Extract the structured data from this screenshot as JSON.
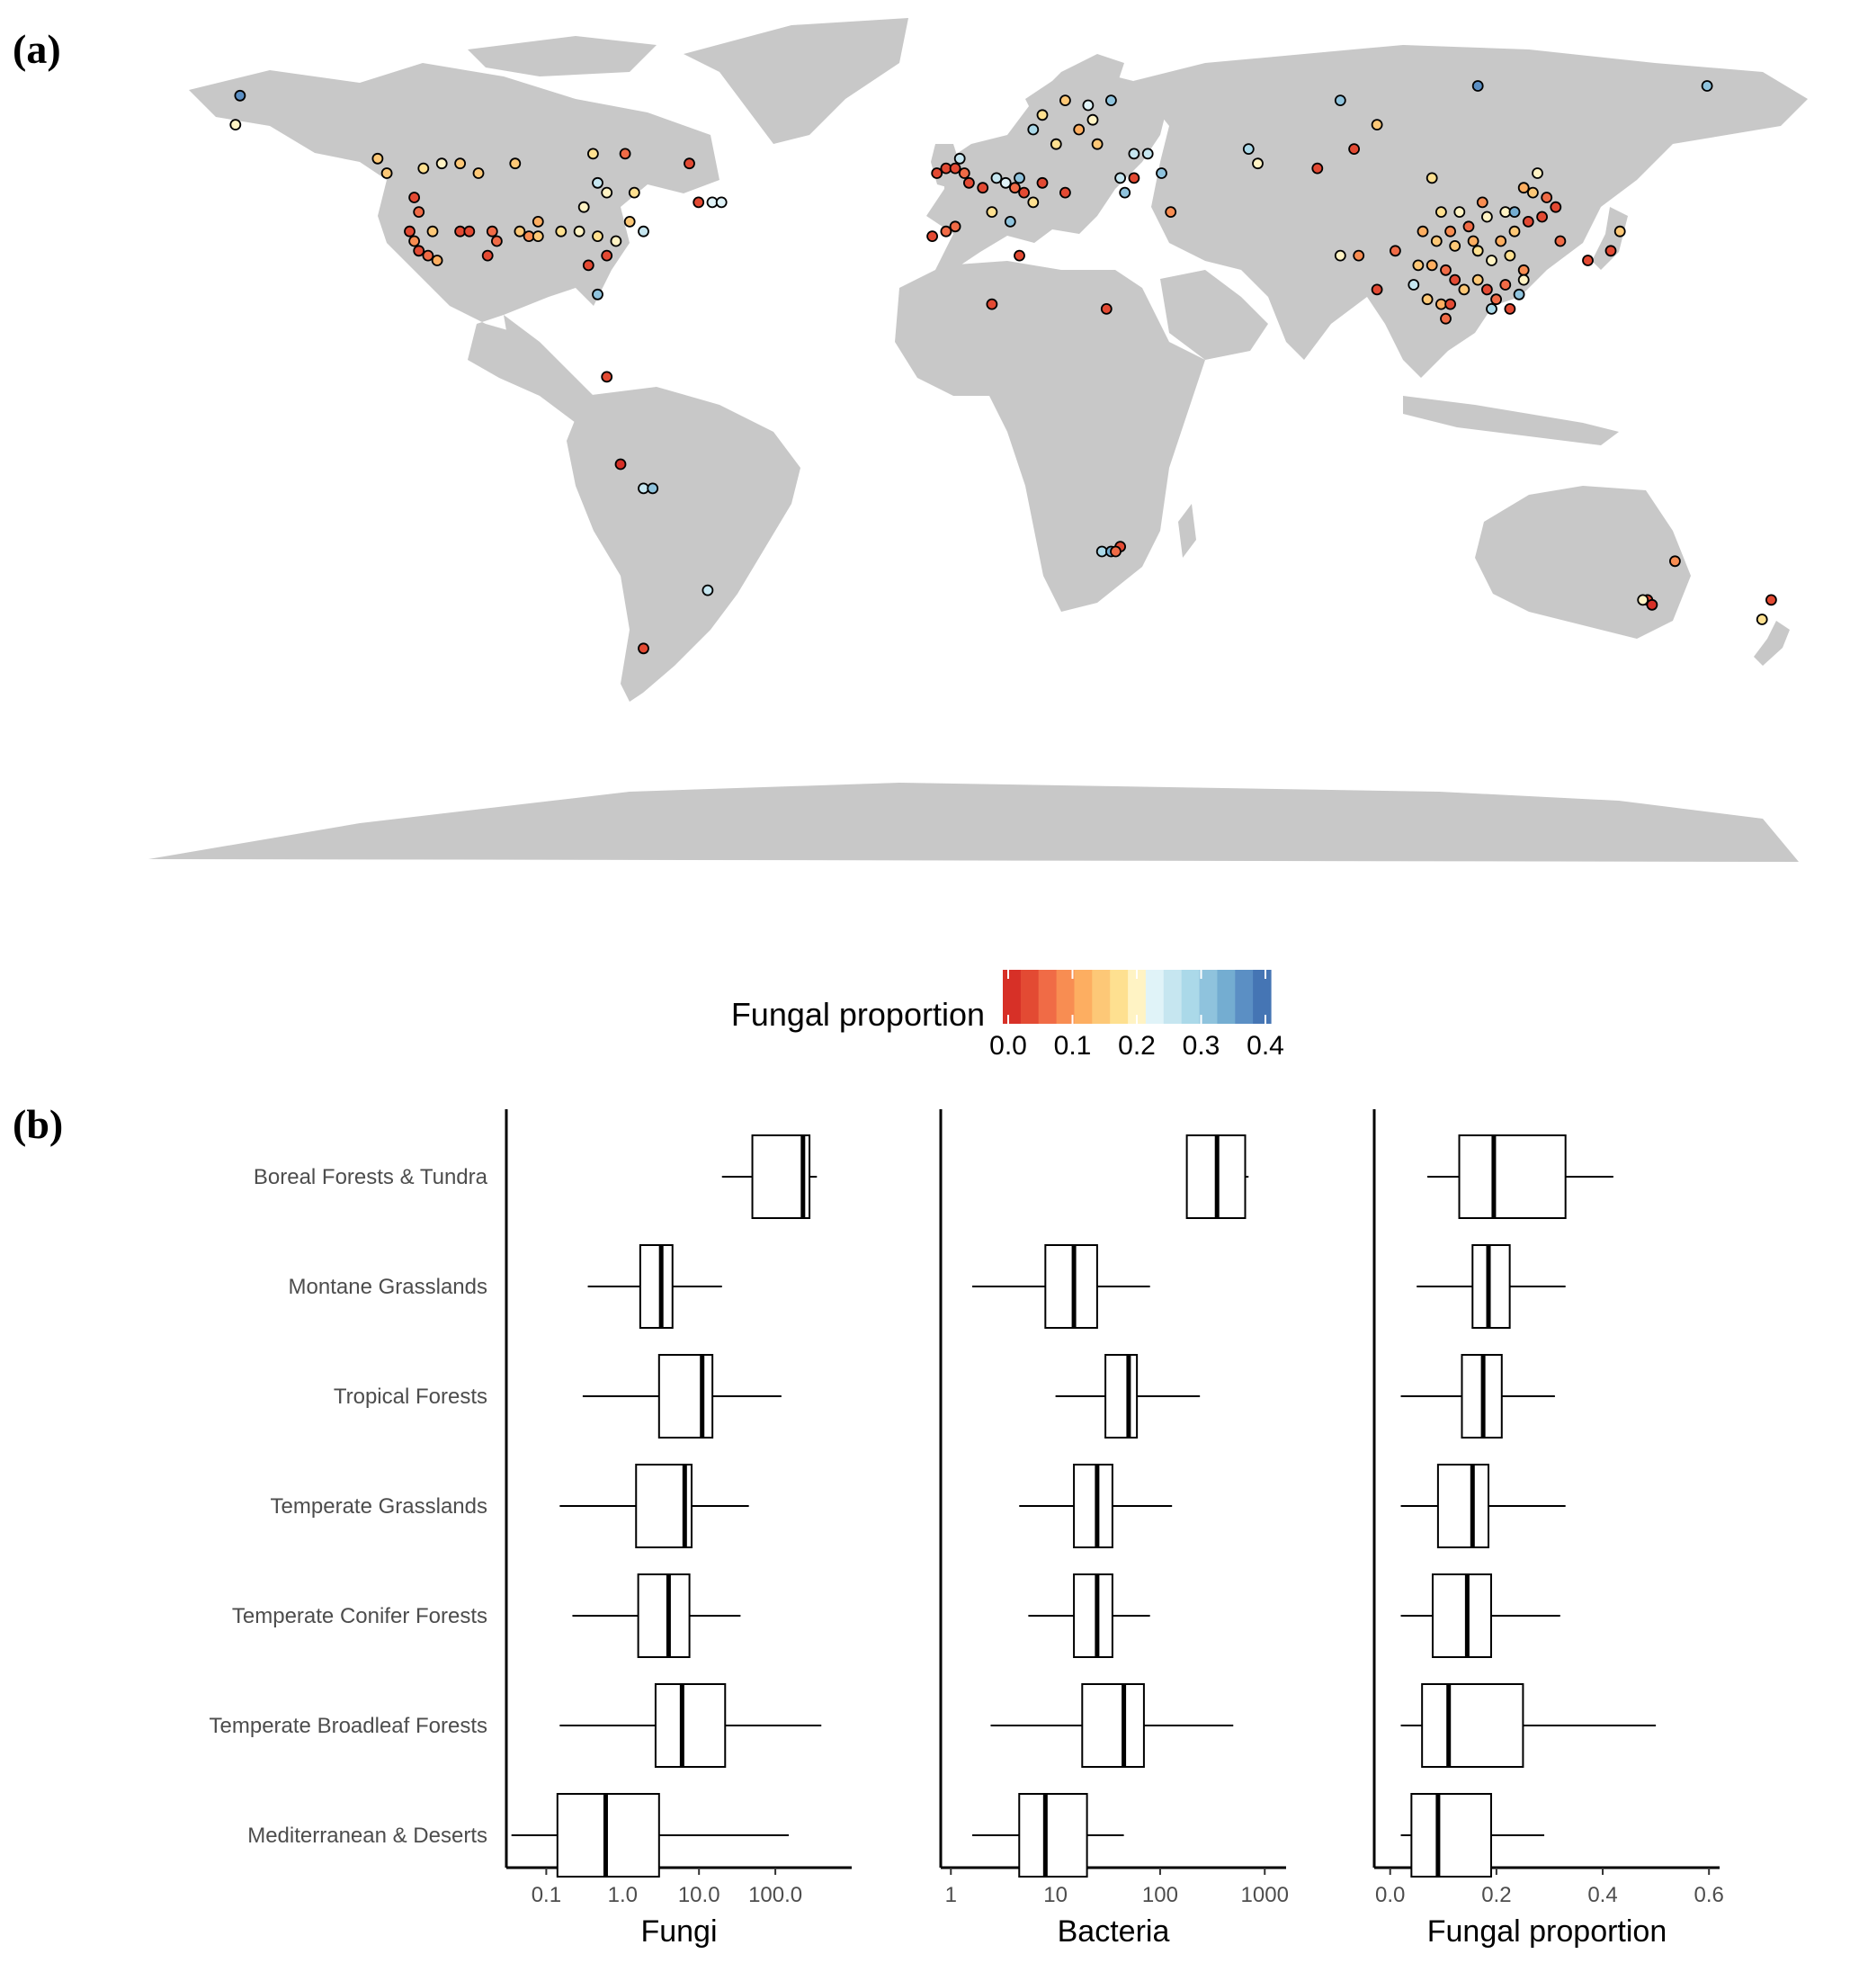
{
  "panel_a_label": "(a)",
  "panel_b_label": "(b)",
  "colors": {
    "land": "#c8c8c8",
    "palette": [
      "#d73027",
      "#e34a33",
      "#f06b46",
      "#f88d52",
      "#fdae61",
      "#fdc877",
      "#fee090",
      "#fff3c4",
      "#e0f3f8",
      "#c6e6f0",
      "#abd9e9",
      "#8fc3dd",
      "#74add1",
      "#5b8fc4",
      "#4575b4"
    ]
  },
  "chart_data": [
    {
      "type": "scatter",
      "title": "",
      "legend": {
        "title": "Fungal proportion",
        "ticks": [
          "0.0",
          "0.1",
          "0.2",
          "0.3",
          "0.4"
        ],
        "range": [
          0.0,
          0.4
        ],
        "placement": "bottom-center"
      },
      "points_lonlat_value": [
        [
          -160,
          68,
          0.35
        ],
        [
          -161,
          62,
          0.19
        ],
        [
          -130,
          55,
          0.15
        ],
        [
          -128,
          52,
          0.16
        ],
        [
          -120,
          53,
          0.18
        ],
        [
          -112,
          54,
          0.14
        ],
        [
          -108,
          52,
          0.15
        ],
        [
          -116,
          54,
          0.2
        ],
        [
          -100,
          54,
          0.16
        ],
        [
          -83,
          56,
          0.18
        ],
        [
          -76,
          56,
          0.06
        ],
        [
          -62,
          54,
          0.05
        ],
        [
          -82,
          50,
          0.24
        ],
        [
          -80,
          48,
          0.2
        ],
        [
          -74,
          48,
          0.17
        ],
        [
          -60,
          46,
          0.03
        ],
        [
          -57,
          46,
          0.22
        ],
        [
          -55,
          46,
          0.22
        ],
        [
          -122,
          47,
          0.05
        ],
        [
          -121,
          44,
          0.08
        ],
        [
          -123,
          40,
          0.05
        ],
        [
          -122,
          38,
          0.1
        ],
        [
          -121,
          36,
          0.04
        ],
        [
          -119,
          35,
          0.08
        ],
        [
          -117,
          34,
          0.13
        ],
        [
          -118,
          40,
          0.15
        ],
        [
          -112,
          40,
          0.05
        ],
        [
          -110,
          40,
          0.04
        ],
        [
          -105,
          40,
          0.08
        ],
        [
          -104,
          38,
          0.07
        ],
        [
          -106,
          35,
          0.05
        ],
        [
          -99,
          40,
          0.15
        ],
        [
          -97,
          39,
          0.1
        ],
        [
          -95,
          42,
          0.12
        ],
        [
          -95,
          39,
          0.16
        ],
        [
          -90,
          40,
          0.18
        ],
        [
          -86,
          40,
          0.19
        ],
        [
          -82,
          39,
          0.18
        ],
        [
          -78,
          38,
          0.2
        ],
        [
          -85,
          45,
          0.2
        ],
        [
          -75,
          42,
          0.16
        ],
        [
          -72,
          40,
          0.24
        ],
        [
          -80,
          35,
          0.05
        ],
        [
          -84,
          33,
          0.04
        ],
        [
          -82,
          27,
          0.32
        ],
        [
          -80,
          10,
          0.04
        ],
        [
          -77,
          -8,
          0.02
        ],
        [
          -72,
          -13,
          0.26
        ],
        [
          -70,
          -13,
          0.3
        ],
        [
          -58,
          -34,
          0.26
        ],
        [
          -72,
          -46,
          0.04
        ],
        [
          -8,
          52,
          0.04
        ],
        [
          -6,
          53,
          0.05
        ],
        [
          -4,
          53,
          0.05
        ],
        [
          -2,
          52,
          0.06
        ],
        [
          -3,
          55,
          0.24
        ],
        [
          -1,
          50,
          0.03
        ],
        [
          2,
          49,
          0.05
        ],
        [
          5,
          51,
          0.26
        ],
        [
          7,
          50,
          0.22
        ],
        [
          9,
          49,
          0.06
        ],
        [
          11,
          48,
          0.05
        ],
        [
          13,
          46,
          0.17
        ],
        [
          8,
          42,
          0.3
        ],
        [
          4,
          44,
          0.17
        ],
        [
          10,
          51,
          0.3
        ],
        [
          15,
          50,
          0.04
        ],
        [
          20,
          48,
          0.05
        ],
        [
          -4,
          41,
          0.08
        ],
        [
          -6,
          40,
          0.06
        ],
        [
          -9,
          39,
          0.04
        ],
        [
          4,
          25,
          0.04
        ],
        [
          10,
          35,
          0.04
        ],
        [
          15,
          64,
          0.17
        ],
        [
          20,
          67,
          0.15
        ],
        [
          23,
          61,
          0.13
        ],
        [
          26,
          63,
          0.2
        ],
        [
          30,
          67,
          0.3
        ],
        [
          25,
          66,
          0.22
        ],
        [
          13,
          61,
          0.28
        ],
        [
          18,
          58,
          0.18
        ],
        [
          27,
          58,
          0.16
        ],
        [
          35,
          56,
          0.26
        ],
        [
          38,
          56,
          0.24
        ],
        [
          32,
          51,
          0.25
        ],
        [
          35,
          51,
          0.04
        ],
        [
          33,
          48,
          0.3
        ],
        [
          43,
          44,
          0.1
        ],
        [
          41,
          52,
          0.3
        ],
        [
          29,
          24,
          0.04
        ],
        [
          60,
          57,
          0.29
        ],
        [
          62,
          54,
          0.2
        ],
        [
          75,
          53,
          0.04
        ],
        [
          83,
          57,
          0.03
        ],
        [
          88,
          62,
          0.16
        ],
        [
          100,
          51,
          0.17
        ],
        [
          80,
          67,
          0.32
        ],
        [
          110,
          70,
          0.36
        ],
        [
          160,
          70,
          0.3
        ],
        [
          88,
          28,
          0.03
        ],
        [
          80,
          35,
          0.2
        ],
        [
          84,
          35,
          0.1
        ],
        [
          92,
          36,
          0.06
        ],
        [
          97,
          33,
          0.15
        ],
        [
          100,
          33,
          0.12
        ],
        [
          103,
          32,
          0.08
        ],
        [
          105,
          30,
          0.05
        ],
        [
          107,
          28,
          0.15
        ],
        [
          110,
          30,
          0.14
        ],
        [
          112,
          28,
          0.05
        ],
        [
          114,
          26,
          0.08
        ],
        [
          116,
          29,
          0.06
        ],
        [
          117,
          24,
          0.04
        ],
        [
          113,
          24,
          0.28
        ],
        [
          119,
          27,
          0.3
        ],
        [
          120,
          32,
          0.09
        ],
        [
          117,
          35,
          0.18
        ],
        [
          113,
          34,
          0.2
        ],
        [
          110,
          36,
          0.17
        ],
        [
          105,
          37,
          0.14
        ],
        [
          101,
          38,
          0.16
        ],
        [
          109,
          38,
          0.11
        ],
        [
          115,
          38,
          0.13
        ],
        [
          118,
          40,
          0.15
        ],
        [
          121,
          42,
          0.05
        ],
        [
          124,
          43,
          0.04
        ],
        [
          127,
          45,
          0.04
        ],
        [
          125,
          47,
          0.07
        ],
        [
          122,
          48,
          0.15
        ],
        [
          120,
          49,
          0.12
        ],
        [
          116,
          44,
          0.21
        ],
        [
          112,
          43,
          0.2
        ],
        [
          108,
          41,
          0.08
        ],
        [
          104,
          40,
          0.1
        ],
        [
          98,
          40,
          0.12
        ],
        [
          102,
          44,
          0.18
        ],
        [
          106,
          44,
          0.21
        ],
        [
          111,
          46,
          0.1
        ],
        [
          128,
          38,
          0.06
        ],
        [
          139,
          36,
          0.05
        ],
        [
          134,
          34,
          0.05
        ],
        [
          141,
          40,
          0.16
        ],
        [
          102,
          25,
          0.11
        ],
        [
          99,
          26,
          0.16
        ],
        [
          103,
          22,
          0.06
        ],
        [
          96,
          29,
          0.24
        ],
        [
          118,
          44,
          0.33
        ],
        [
          123,
          52,
          0.2
        ],
        [
          120,
          30,
          0.2
        ],
        [
          104,
          25,
          0.03
        ],
        [
          28,
          -26,
          0.29
        ],
        [
          30,
          -26,
          0.34
        ],
        [
          32,
          -25,
          0.04
        ],
        [
          31,
          -26,
          0.06
        ],
        [
          153,
          -28,
          0.1
        ],
        [
          147,
          -36,
          0.05
        ],
        [
          148,
          -37,
          0.02
        ],
        [
          146,
          -36,
          0.2
        ],
        [
          174,
          -36,
          0.03
        ],
        [
          172,
          -40,
          0.18
        ]
      ]
    },
    {
      "type": "box",
      "categories": [
        "Boreal Forests & Tundra",
        "Montane Grasslands",
        "Tropical Forests",
        "Temperate Grasslands",
        "Temperate Conifer Forests",
        "Temperate Broadleaf Forests",
        "Mediterranean & Deserts"
      ],
      "panels": [
        {
          "xlabel": "Fungi",
          "scale": "log",
          "xlim": [
            0.03,
            1000
          ],
          "ticks": [
            0.1,
            1,
            10,
            100
          ],
          "tick_labels": [
            "0.1",
            "1.0",
            "10.0",
            "100.0"
          ],
          "boxes": [
            [
              20,
              50,
              230,
              280,
              350
            ],
            [
              0.35,
              1.7,
              3.2,
              4.5,
              20
            ],
            [
              0.3,
              3,
              11,
              15,
              120
            ],
            [
              0.15,
              1.5,
              6.5,
              8,
              45
            ],
            [
              0.22,
              1.6,
              4,
              7.5,
              35
            ],
            [
              0.15,
              2.7,
              6,
              22,
              400
            ],
            [
              0.035,
              0.14,
              0.6,
              3,
              150
            ]
          ]
        },
        {
          "xlabel": "Bacteria",
          "scale": "log",
          "xlim": [
            0.8,
            1600
          ],
          "ticks": [
            1,
            10,
            100,
            1000
          ],
          "tick_labels": [
            "1",
            "10",
            "100",
            "1000"
          ],
          "boxes": [
            [
              180,
              180,
              350,
              650,
              700
            ],
            [
              1.6,
              8,
              15,
              25,
              80
            ],
            [
              10,
              30,
              50,
              60,
              240
            ],
            [
              4.5,
              15,
              25,
              35,
              130
            ],
            [
              5.5,
              15,
              25,
              35,
              80
            ],
            [
              2.4,
              18,
              45,
              70,
              500
            ],
            [
              1.6,
              4.5,
              8,
              20,
              45
            ]
          ]
        },
        {
          "xlabel": "Fungal proportion",
          "scale": "linear",
          "xlim": [
            -0.03,
            0.62
          ],
          "ticks": [
            0.0,
            0.2,
            0.4,
            0.6
          ],
          "tick_labels": [
            "0.0",
            "0.2",
            "0.4",
            "0.6"
          ],
          "boxes": [
            [
              0.07,
              0.13,
              0.195,
              0.33,
              0.42
            ],
            [
              0.05,
              0.155,
              0.185,
              0.225,
              0.33
            ],
            [
              0.02,
              0.135,
              0.175,
              0.21,
              0.31
            ],
            [
              0.02,
              0.09,
              0.155,
              0.185,
              0.33
            ],
            [
              0.02,
              0.08,
              0.145,
              0.19,
              0.32
            ],
            [
              0.02,
              0.06,
              0.11,
              0.25,
              0.5
            ],
            [
              0.02,
              0.04,
              0.09,
              0.19,
              0.29
            ]
          ]
        }
      ]
    }
  ]
}
